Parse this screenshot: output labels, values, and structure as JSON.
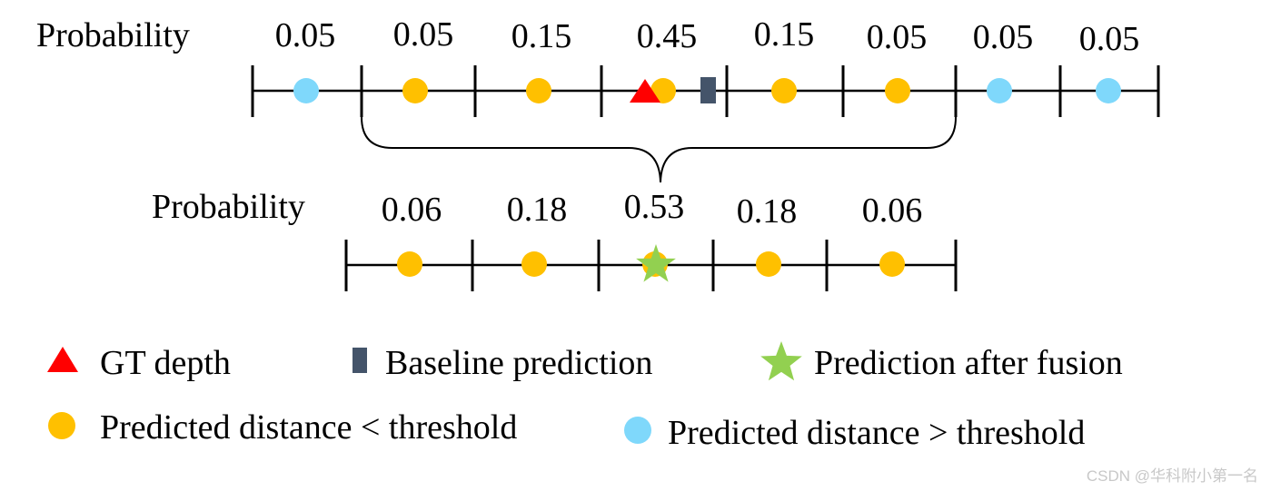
{
  "top_row": {
    "label": "Probability",
    "bins": [
      {
        "prob": "0.05",
        "dot": "blue"
      },
      {
        "prob": "0.05",
        "dot": "orange"
      },
      {
        "prob": "0.15",
        "dot": "orange"
      },
      {
        "prob": "0.45",
        "dot": "orange"
      },
      {
        "prob": "0.15",
        "dot": "orange"
      },
      {
        "prob": "0.05",
        "dot": "orange"
      },
      {
        "prob": "0.05",
        "dot": "blue"
      },
      {
        "prob": "0.05",
        "dot": "blue"
      }
    ]
  },
  "bottom_row": {
    "label": "Probability",
    "bins": [
      {
        "prob": "0.06",
        "dot": "orange"
      },
      {
        "prob": "0.18",
        "dot": "orange"
      },
      {
        "prob": "0.53",
        "dot": "orange"
      },
      {
        "prob": "0.18",
        "dot": "orange"
      },
      {
        "prob": "0.06",
        "dot": "orange"
      }
    ]
  },
  "legend": {
    "gt_depth": "GT depth",
    "baseline": "Baseline prediction",
    "fusion": "Prediction after fusion",
    "below_threshold": "Predicted distance < threshold",
    "above_threshold": "Predicted distance > threshold"
  },
  "colors": {
    "orange": "#FFC000",
    "blue": "#7FD8FB",
    "red": "#FF0000",
    "baseline": "#44546A",
    "green": "#92D050"
  },
  "watermark": "CSDN @华科附小第一名"
}
